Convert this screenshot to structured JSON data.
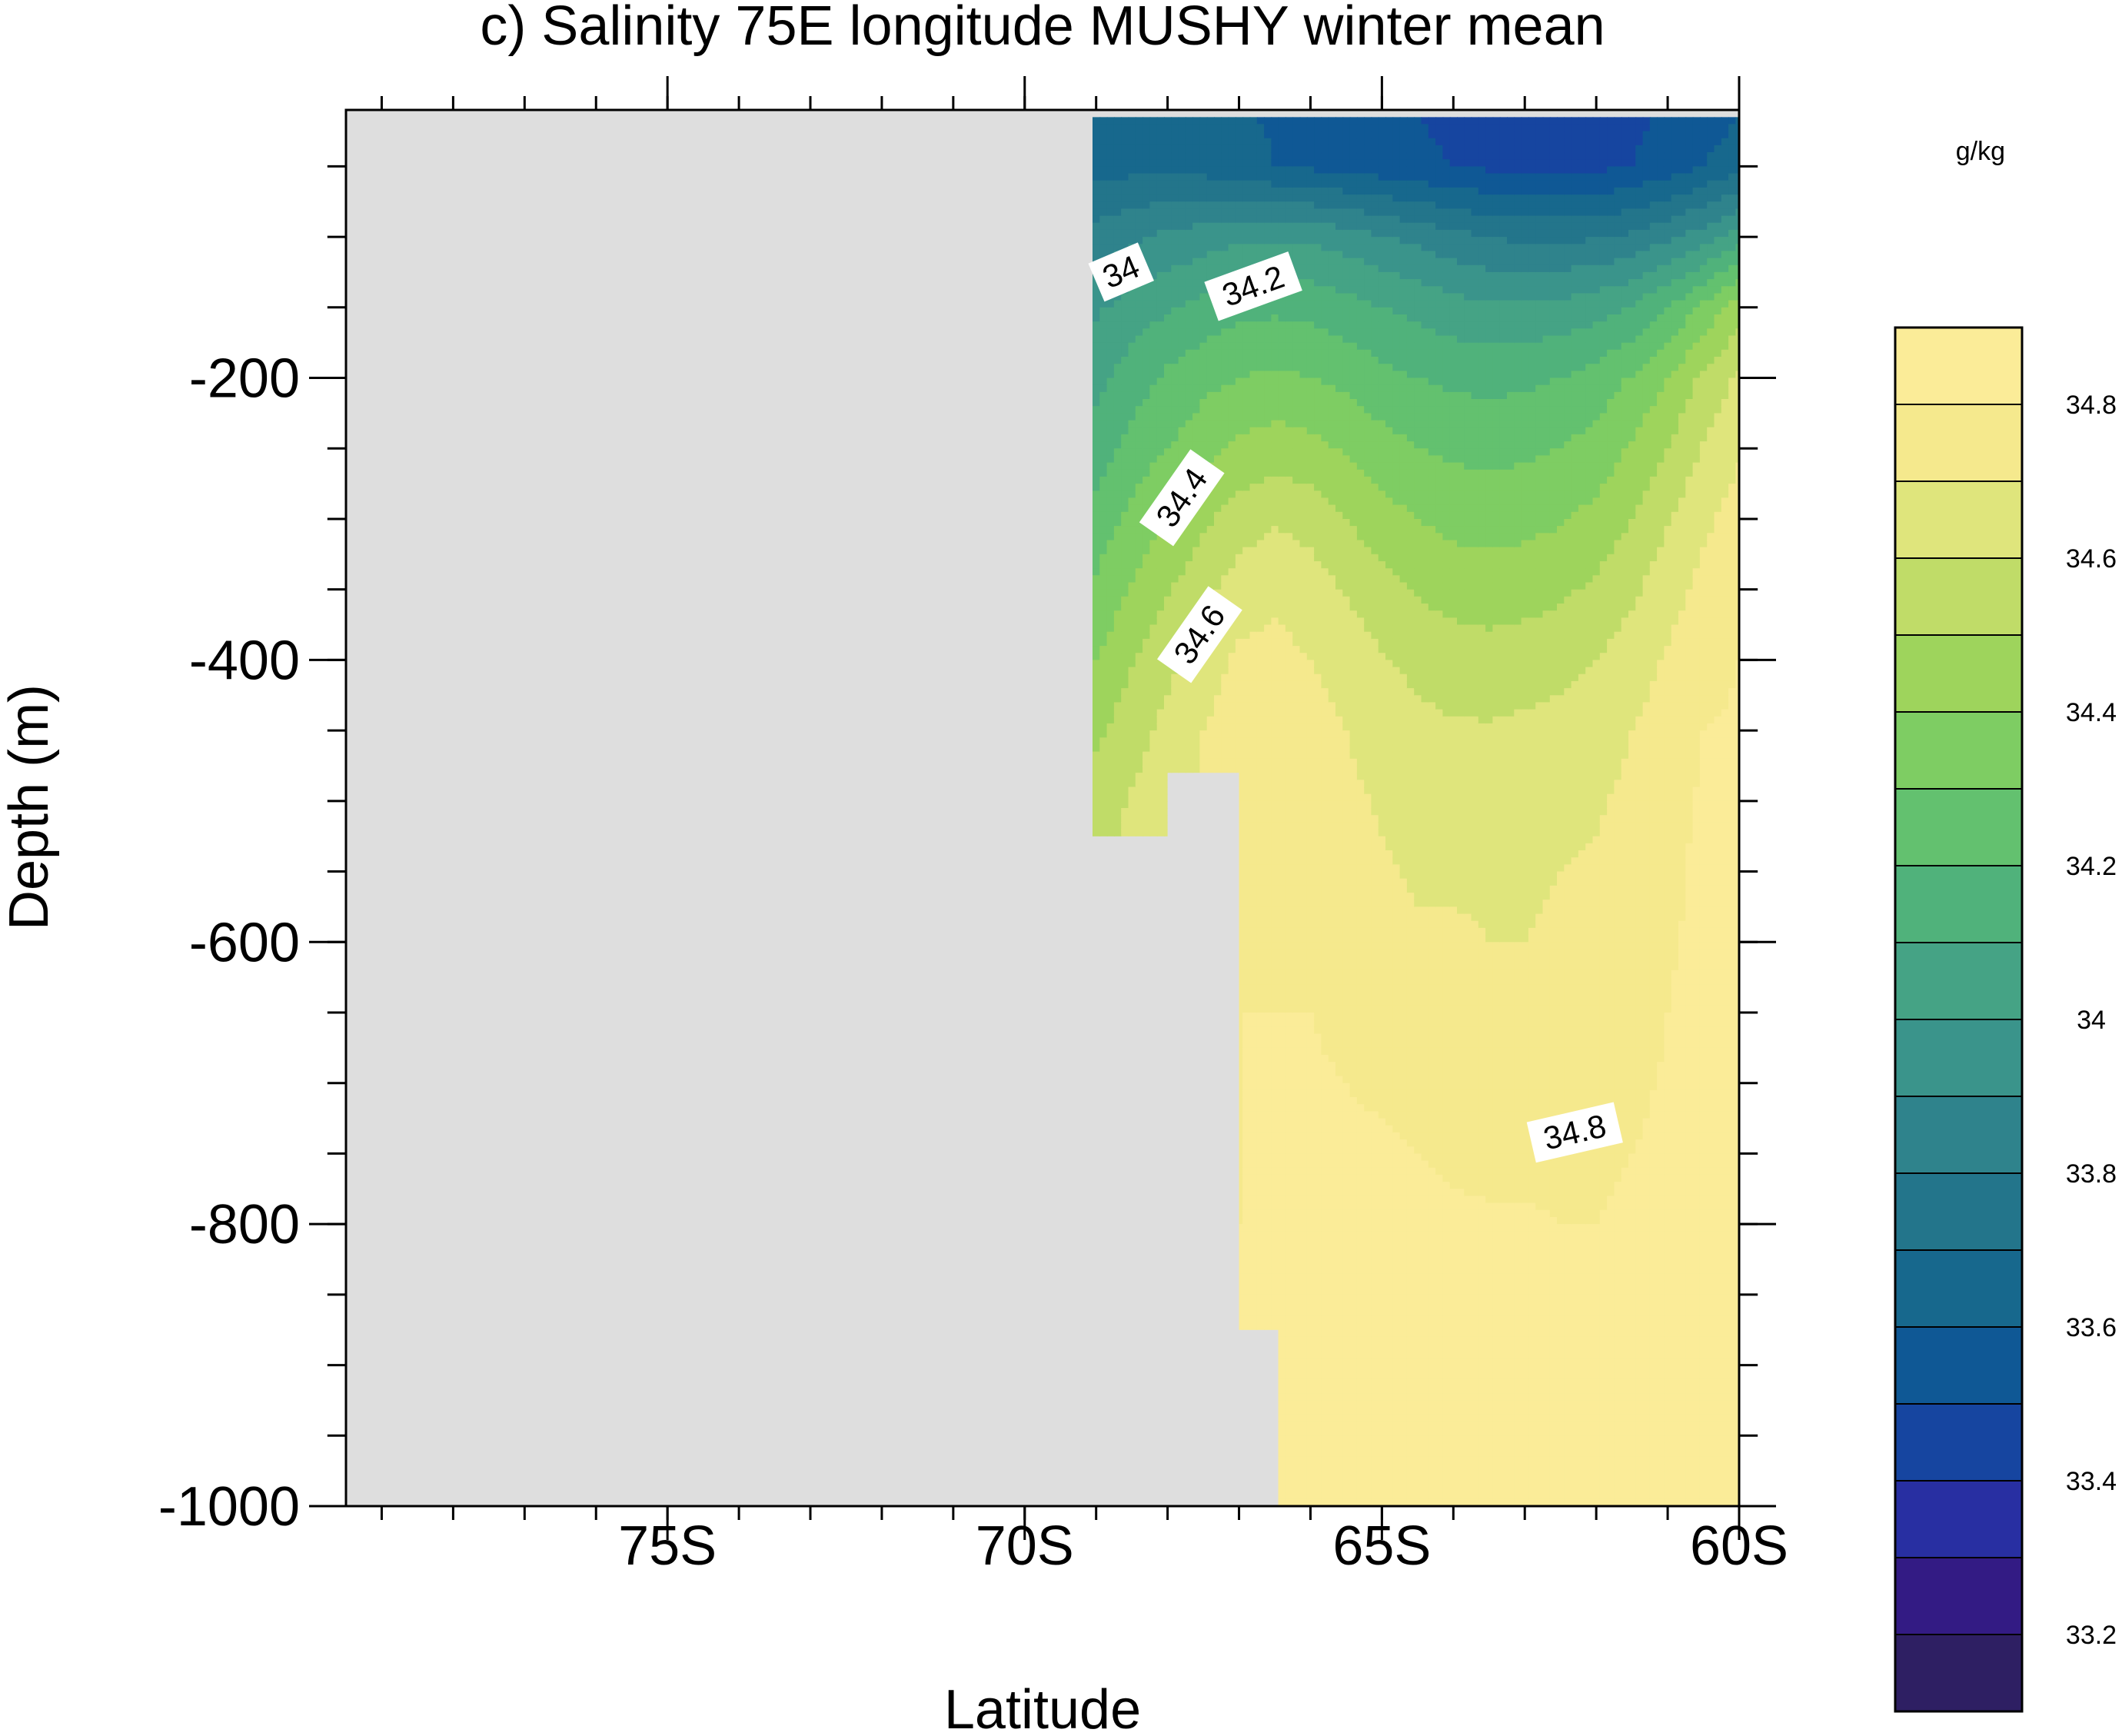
{
  "chart_data": {
    "type": "heatmap",
    "title": "c) Salinity 75E longitude MUSHY winter mean",
    "xlabel": "Latitude",
    "ylabel": "Depth (m)",
    "xlim": [
      -79.5,
      -60
    ],
    "ylim": [
      -1000,
      -10
    ],
    "x_ticks": [
      {
        "value": -75,
        "label": "75S"
      },
      {
        "value": -70,
        "label": "70S"
      },
      {
        "value": -65,
        "label": "65S"
      },
      {
        "value": -60,
        "label": "60S"
      }
    ],
    "y_ticks": [
      {
        "value": -200,
        "label": "-200"
      },
      {
        "value": -400,
        "label": "-400"
      },
      {
        "value": -600,
        "label": "-600"
      },
      {
        "value": -800,
        "label": "-800"
      },
      {
        "value": -1000,
        "label": "-1000"
      }
    ],
    "x_minor_step": 1,
    "y_minor_step": 50,
    "land_color": "#dedede",
    "ocean_boundary": [
      [
        -69.05,
        -15
      ],
      [
        -60,
        -15
      ],
      [
        -60,
        -1000
      ],
      [
        -66.45,
        -1000
      ],
      [
        -66.45,
        -875
      ],
      [
        -67.0,
        -875
      ],
      [
        -67.0,
        -480
      ],
      [
        -68.0,
        -480
      ],
      [
        -68.0,
        -525
      ],
      [
        -69.05,
        -525
      ]
    ],
    "colorbar": {
      "units": "g/kg",
      "levels": [
        33.1,
        33.2,
        33.3,
        33.4,
        33.5,
        33.6,
        33.7,
        33.8,
        33.9,
        34.0,
        34.1,
        34.2,
        34.3,
        34.4,
        34.5,
        34.6,
        34.7,
        34.8
      ],
      "tick_labels": [
        "33.2",
        "33.4",
        "33.6",
        "33.8",
        "34",
        "34.2",
        "34.4",
        "34.6",
        "34.8"
      ],
      "colors": [
        "#2e1f63",
        "#331b84",
        "#282fa2",
        "#1645a0",
        "#0f5895",
        "#17688d",
        "#23758b",
        "#2f838c",
        "#3a948b",
        "#45a385",
        "#50b27b",
        "#63c16f",
        "#7ecd63",
        "#9ed45c",
        "#c0dc68",
        "#dfe57c",
        "#f5e98d",
        "#fbec98"
      ]
    },
    "salinity_profiles": {
      "depths": [
        -15,
        -50,
        -100,
        -150,
        -200,
        -250,
        -300,
        -350,
        -400,
        -450,
        -500,
        -550,
        -600,
        -650,
        -700,
        -750,
        -800,
        -850,
        -900,
        -950,
        -1000
      ],
      "columns": [
        {
          "lat": -69.05,
          "values": [
            33.62,
            33.66,
            33.84,
            33.98,
            34.06,
            34.14,
            34.23,
            34.31,
            34.39,
            34.47,
            34.54,
            34.58
          ]
        },
        {
          "lat": -68.5,
          "values": [
            33.63,
            33.67,
            33.88,
            34.04,
            34.15,
            34.24,
            34.33,
            34.41,
            34.49,
            34.56,
            34.61,
            34.63
          ]
        },
        {
          "lat": -68.0,
          "values": [
            33.64,
            33.68,
            33.92,
            34.09,
            34.22,
            34.3,
            34.4,
            34.49,
            34.57,
            34.63,
            34.66,
            34.68
          ]
        },
        {
          "lat": -67.5,
          "values": [
            33.63,
            33.66,
            33.95,
            34.13,
            34.27,
            34.36,
            34.48,
            34.57,
            34.65,
            34.7,
            34.72,
            34.73
          ]
        },
        {
          "lat": -67.0,
          "values": [
            33.61,
            33.63,
            33.98,
            34.17,
            34.3,
            34.42,
            34.55,
            34.65,
            34.72,
            34.76,
            34.77,
            34.78,
            34.79,
            34.8,
            34.8,
            34.8,
            34.8,
            34.81
          ]
        },
        {
          "lat": -66.5,
          "values": [
            33.59,
            33.6,
            33.99,
            34.18,
            34.32,
            34.45,
            34.59,
            34.68,
            34.73,
            34.76,
            34.77,
            34.78,
            34.79,
            34.8,
            34.8,
            34.81,
            34.81,
            34.81,
            34.81,
            34.81,
            34.81
          ]
        },
        {
          "lat": -66.0,
          "values": [
            33.58,
            33.58,
            33.98,
            34.17,
            34.3,
            34.43,
            34.56,
            34.65,
            34.7,
            34.74,
            34.76,
            34.77,
            34.79,
            34.8,
            34.81,
            34.81,
            34.81,
            34.82,
            34.82,
            34.82,
            34.82
          ]
        },
        {
          "lat": -65.5,
          "values": [
            33.55,
            33.56,
            33.95,
            34.14,
            34.27,
            34.39,
            34.5,
            34.59,
            34.66,
            34.7,
            34.72,
            34.74,
            34.76,
            34.78,
            34.8,
            34.81,
            34.82,
            34.82,
            34.82,
            34.83,
            34.83
          ]
        },
        {
          "lat": -65.0,
          "values": [
            33.52,
            33.54,
            33.91,
            34.1,
            34.23,
            34.34,
            34.44,
            34.54,
            34.61,
            34.66,
            34.69,
            34.71,
            34.73,
            34.76,
            34.79,
            34.81,
            34.82,
            34.83,
            34.83,
            34.83,
            34.83
          ]
        },
        {
          "lat": -64.5,
          "values": [
            33.5,
            33.52,
            33.87,
            34.07,
            34.2,
            34.3,
            34.4,
            34.49,
            34.57,
            34.63,
            34.67,
            34.69,
            34.71,
            34.74,
            34.77,
            34.8,
            34.82,
            34.83,
            34.83,
            34.83,
            34.83
          ]
        },
        {
          "lat": -64.0,
          "values": [
            33.48,
            33.5,
            33.83,
            34.04,
            34.18,
            34.28,
            34.37,
            34.46,
            34.55,
            34.61,
            34.66,
            34.69,
            34.71,
            34.73,
            34.76,
            34.79,
            34.81,
            34.83,
            34.83,
            34.83,
            34.83
          ]
        },
        {
          "lat": -63.5,
          "values": [
            33.46,
            33.48,
            33.8,
            34.02,
            34.17,
            34.27,
            34.36,
            34.45,
            34.54,
            34.61,
            34.66,
            34.69,
            34.7,
            34.72,
            34.75,
            34.78,
            34.81,
            34.83,
            34.83,
            34.83,
            34.83
          ]
        },
        {
          "lat": -63.0,
          "values": [
            33.45,
            33.47,
            33.78,
            34.02,
            34.18,
            34.28,
            34.37,
            34.46,
            34.55,
            34.62,
            34.67,
            34.69,
            34.7,
            34.72,
            34.75,
            34.78,
            34.81,
            34.82,
            34.83,
            34.83,
            34.83
          ]
        },
        {
          "lat": -62.5,
          "values": [
            33.45,
            33.47,
            33.78,
            34.03,
            34.2,
            34.3,
            34.39,
            34.48,
            34.57,
            34.63,
            34.68,
            34.7,
            34.71,
            34.72,
            34.75,
            34.78,
            34.8,
            34.82,
            34.83,
            34.83,
            34.83
          ]
        },
        {
          "lat": -62.0,
          "values": [
            33.46,
            33.48,
            33.79,
            34.06,
            34.24,
            34.34,
            34.43,
            34.52,
            34.6,
            34.66,
            34.69,
            34.71,
            34.72,
            34.73,
            34.75,
            34.78,
            34.8,
            34.82,
            34.83,
            34.83,
            34.83
          ]
        },
        {
          "lat": -61.5,
          "values": [
            33.48,
            33.5,
            33.82,
            34.11,
            34.31,
            34.41,
            34.5,
            34.58,
            34.65,
            34.7,
            34.72,
            34.73,
            34.74,
            34.76,
            34.78,
            34.8,
            34.82,
            34.83,
            34.83,
            34.83,
            34.83
          ]
        },
        {
          "lat": -61.0,
          "values": [
            33.51,
            33.55,
            33.88,
            34.2,
            34.4,
            34.5,
            34.59,
            34.66,
            34.71,
            34.75,
            34.77,
            34.78,
            34.79,
            34.8,
            34.81,
            34.82,
            34.83,
            34.83,
            34.84,
            34.84,
            34.84
          ]
        },
        {
          "lat": -60.5,
          "values": [
            33.55,
            33.6,
            33.95,
            34.32,
            34.52,
            34.61,
            34.68,
            34.73,
            34.77,
            34.8,
            34.81,
            34.82,
            34.82,
            34.83,
            34.83,
            34.84,
            34.84,
            34.84,
            34.84,
            34.84,
            34.84
          ]
        },
        {
          "lat": -60.0,
          "values": [
            33.6,
            33.66,
            34.05,
            34.45,
            34.62,
            34.69,
            34.74,
            34.78,
            34.8,
            34.81,
            34.82,
            34.82,
            34.83,
            34.83,
            34.84,
            34.84,
            34.84,
            34.84,
            34.84,
            34.84,
            34.84
          ]
        }
      ]
    },
    "contour_labels": [
      {
        "text": "34",
        "lat": -68.65,
        "depth": -125,
        "angle": -23
      },
      {
        "text": "34.2",
        "lat": -66.8,
        "depth": -135,
        "angle": -20
      },
      {
        "text": "34.4",
        "lat": -67.8,
        "depth": -285,
        "angle": -55
      },
      {
        "text": "34.6",
        "lat": -67.55,
        "depth": -382,
        "angle": -55
      },
      {
        "text": "34.8",
        "lat": -62.3,
        "depth": -735,
        "angle": -13
      }
    ]
  }
}
